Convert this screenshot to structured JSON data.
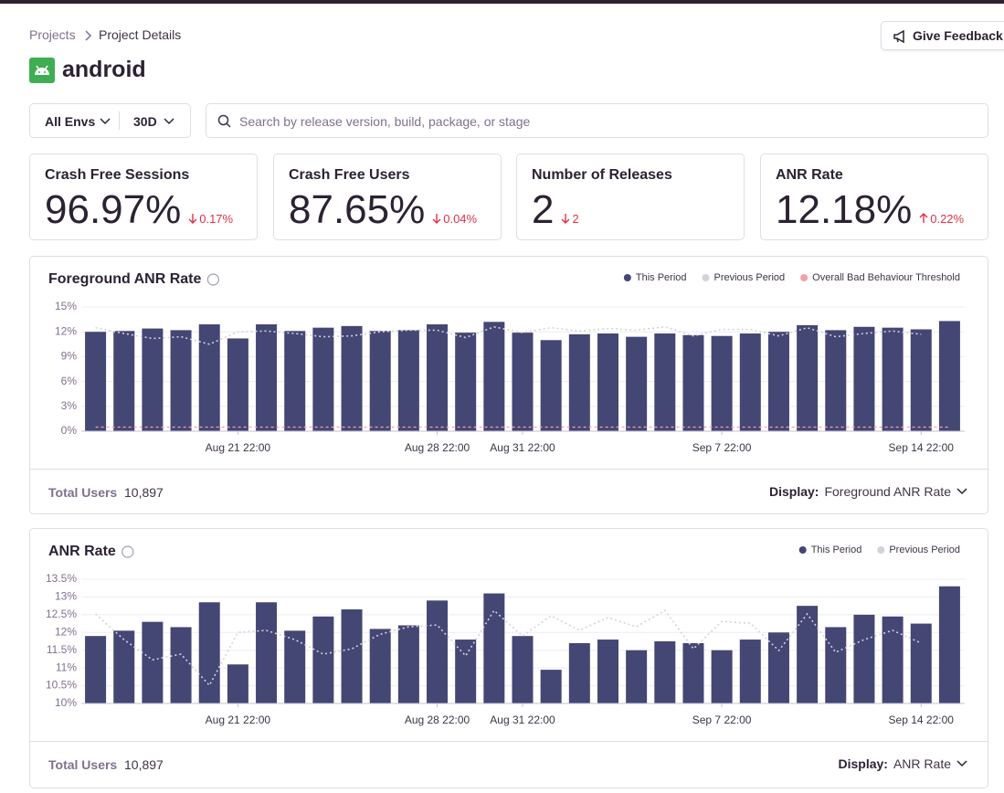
{
  "breadcrumb": [
    "Projects",
    "Project Details"
  ],
  "header": {
    "title": "android",
    "button": "Give Feedback"
  },
  "filters": {
    "environment": "All Envs",
    "period": "30D",
    "search_placeholder": "Search by release version, build, package, or stage"
  },
  "score_cards": [
    {
      "title": "Crash Free Sessions",
      "value": "96.97%",
      "change": "0.17%",
      "direction": "down"
    },
    {
      "title": "Crash Free Users",
      "value": "87.65%",
      "change": "0.04%",
      "direction": "down"
    },
    {
      "title": "Number of Releases",
      "value": "2",
      "change": "2",
      "direction": "down"
    },
    {
      "title": "ANR Rate",
      "value": "12.18%",
      "change": "0.22%",
      "direction": "up"
    }
  ],
  "chart_data": [
    {
      "type": "bar",
      "title": "Foreground ANR Rate",
      "categories": [
        null,
        null,
        null,
        null,
        null,
        "Aug 21 22:00",
        null,
        null,
        null,
        null,
        null,
        null,
        "Aug 28 22:00",
        null,
        null,
        "Aug 31 22:00",
        null,
        null,
        null,
        null,
        null,
        null,
        "Sep 7 22:00",
        null,
        null,
        null,
        null,
        null,
        null,
        "Sep 14 22:00",
        null
      ],
      "series": [
        {
          "name": "This Period",
          "color": "#444674",
          "values": [
            12.0,
            12.1,
            12.4,
            12.2,
            12.9,
            11.2,
            12.9,
            12.1,
            12.5,
            12.7,
            12.1,
            12.2,
            12.9,
            11.9,
            13.2,
            11.9,
            11.0,
            11.7,
            11.8,
            11.4,
            11.8,
            11.6,
            11.5,
            11.8,
            12.0,
            12.8,
            12.2,
            12.6,
            12.5,
            12.3,
            13.3
          ]
        },
        {
          "name": "Previous Period",
          "color": "#d4d1dc",
          "type": "line",
          "values": [
            12.5,
            11.8,
            11.2,
            11.4,
            10.5,
            12.0,
            12.1,
            11.8,
            11.4,
            11.5,
            12.0,
            12.2,
            12.2,
            11.3,
            12.6,
            11.9,
            12.5,
            12.1,
            12.4,
            12.2,
            12.6,
            11.5,
            12.3,
            12.3,
            11.5,
            12.5,
            11.4,
            11.8,
            12.1,
            11.7,
            null
          ]
        },
        {
          "name": "Overall Bad Behaviour Threshold",
          "color": "#f0a3a8",
          "type": "line",
          "values": [
            0.5,
            0.5,
            0.5,
            0.5,
            0.5,
            0.5,
            0.5,
            0.5,
            0.5,
            0.5,
            0.5,
            0.5,
            0.5,
            0.5,
            0.5,
            0.5,
            0.5,
            0.5,
            0.5,
            0.5,
            0.5,
            0.5,
            0.5,
            0.5,
            0.5,
            0.5,
            0.5,
            0.5,
            0.5,
            0.5,
            0.5
          ]
        }
      ],
      "ylim": [
        0,
        15
      ],
      "yticks": [
        {
          "value": 0,
          "label": "0%"
        },
        {
          "value": 3,
          "label": "3%"
        },
        {
          "value": 6,
          "label": "6%"
        },
        {
          "value": 9,
          "label": "9%"
        },
        {
          "value": 12,
          "label": "12%"
        },
        {
          "value": 15,
          "label": "15%"
        }
      ],
      "grid": true
    },
    {
      "type": "bar",
      "title": "ANR Rate",
      "categories": [
        null,
        null,
        null,
        null,
        null,
        "Aug 21 22:00",
        null,
        null,
        null,
        null,
        null,
        null,
        "Aug 28 22:00",
        null,
        null,
        "Aug 31 22:00",
        null,
        null,
        null,
        null,
        null,
        null,
        "Sep 7 22:00",
        null,
        null,
        null,
        null,
        null,
        null,
        "Sep 14 22:00",
        null
      ],
      "series": [
        {
          "name": "This Period",
          "color": "#444674",
          "values": [
            11.9,
            12.05,
            12.3,
            12.15,
            12.85,
            11.1,
            12.85,
            12.05,
            12.45,
            12.65,
            12.1,
            12.2,
            12.9,
            11.8,
            13.1,
            11.9,
            10.95,
            11.7,
            11.8,
            11.5,
            11.75,
            11.7,
            11.5,
            11.8,
            12.0,
            12.75,
            12.15,
            12.5,
            12.45,
            12.25,
            13.3
          ]
        },
        {
          "name": "Previous Period",
          "color": "#d4d1dc",
          "type": "line",
          "values": [
            12.52,
            11.8,
            11.23,
            11.39,
            10.51,
            12.0,
            12.06,
            11.8,
            11.39,
            11.54,
            11.95,
            12.16,
            12.21,
            11.34,
            12.62,
            11.9,
            12.47,
            12.06,
            12.42,
            12.16,
            12.62,
            11.54,
            12.31,
            12.26,
            11.49,
            12.52,
            11.44,
            11.8,
            12.06,
            11.7,
            null
          ]
        }
      ],
      "ylim": [
        10,
        13.5
      ],
      "yticks": [
        {
          "value": 10,
          "label": "10%"
        },
        {
          "value": 10.5,
          "label": "10.5%"
        },
        {
          "value": 11,
          "label": "11%"
        },
        {
          "value": 11.5,
          "label": "11.5%"
        },
        {
          "value": 12,
          "label": "12%"
        },
        {
          "value": 12.5,
          "label": "12.5%"
        },
        {
          "value": 13,
          "label": "13%"
        },
        {
          "value": 13.5,
          "label": "13.5%"
        }
      ],
      "grid": true
    }
  ],
  "chart_footers": [
    {
      "label": "Total Users",
      "value": "10,897",
      "display_label": "Display:",
      "display_value": "Foreground ANR Rate"
    },
    {
      "label": "Total Users",
      "value": "10,897",
      "display_label": "Display:",
      "display_value": "ANR Rate"
    }
  ]
}
